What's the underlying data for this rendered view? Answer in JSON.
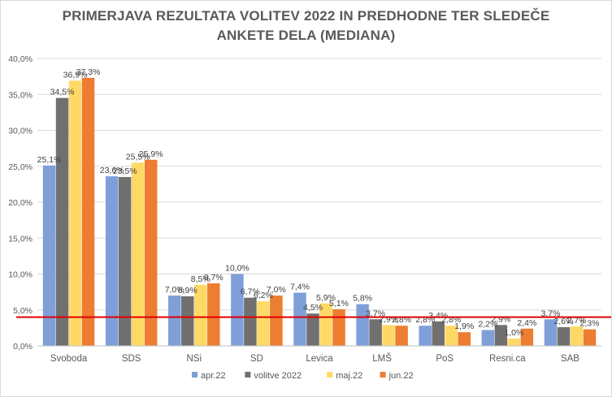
{
  "chart_data": {
    "type": "bar",
    "title": "PRIMERJAVA REZULTATA VOLITEV 2022 IN PREDHODNE TER SLEDEČE\nANKETE DELA (MEDIANA)",
    "categories": [
      "Svoboda",
      "SDS",
      "NSi",
      "SD",
      "Levica",
      "LMŠ",
      "PoS",
      "Resni.ca",
      "SAB"
    ],
    "series": [
      {
        "name": "apr.22",
        "color": "#7f9fd9",
        "values": [
          25.1,
          23.6,
          7.0,
          10.0,
          7.4,
          5.8,
          2.8,
          2.2,
          3.7
        ]
      },
      {
        "name": "volitve 2022",
        "color": "#707070",
        "values": [
          34.5,
          23.5,
          6.9,
          6.7,
          4.5,
          3.7,
          3.4,
          2.9,
          2.6
        ]
      },
      {
        "name": "maj.22",
        "color": "#ffd966",
        "values": [
          36.9,
          25.5,
          8.5,
          6.2,
          5.9,
          2.9,
          2.8,
          1.0,
          2.7
        ]
      },
      {
        "name": "jun.22",
        "color": "#ed7d31",
        "values": [
          37.3,
          25.9,
          8.7,
          7.0,
          5.1,
          2.8,
          1.9,
          2.4,
          2.3
        ]
      }
    ],
    "data_labels": [
      [
        "25,1%",
        "23,6%",
        "7,0%",
        "10,0%",
        "7,4%",
        "5,8%",
        "2,8%",
        "2,2%",
        "3,7%"
      ],
      [
        "34,5%",
        "23,5%",
        "6,9%",
        "6,7%",
        "4,5%",
        "3,7%",
        "3,4%",
        "2,9%",
        "2,6%"
      ],
      [
        "36,9%",
        "25,5%",
        "8,5%",
        "6,2%",
        "5,9%",
        "2,9%",
        "2,8%",
        "1,0%",
        "2,7%"
      ],
      [
        "37,3%",
        "25,9%",
        "8,7%",
        "7,0%",
        "5,1%",
        "2,8%",
        "1,9%",
        "2,4%",
        "2,3%"
      ]
    ],
    "yticks": [
      0,
      5,
      10,
      15,
      20,
      25,
      30,
      35,
      40
    ],
    "ytick_labels": [
      "0,0%",
      "5,0%",
      "10,0%",
      "15,0%",
      "20,0%",
      "25,0%",
      "30,0%",
      "35,0%",
      "40,0%"
    ],
    "ylim": [
      0,
      40
    ],
    "threshold": 4,
    "threshold_color": "#e00000",
    "grid": true,
    "legend_position": "bottom"
  }
}
